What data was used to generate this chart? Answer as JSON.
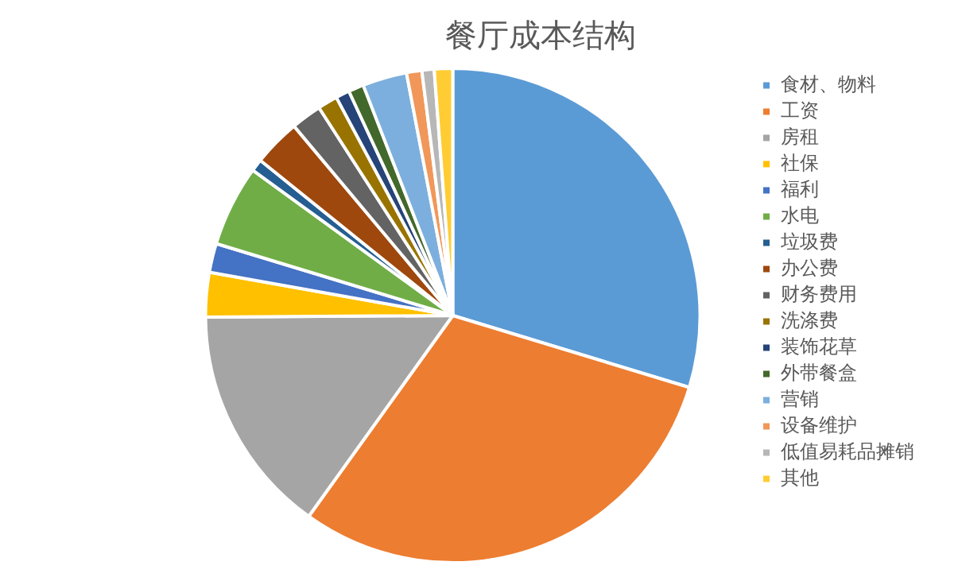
{
  "chart_data": {
    "type": "pie",
    "title": "餐厅成本结构",
    "categories": [
      "食材、物料",
      "工资",
      "房租",
      "社保",
      "福利",
      "水电",
      "垃圾费",
      "办公费",
      "财务费用",
      "洗涤费",
      "装饰花草",
      "外带餐盒",
      "营销",
      "设备维护",
      "低值易耗品摊销",
      "其他"
    ],
    "values": [
      29.7,
      30.2,
      15,
      2.9,
      1.9,
      5.3,
      0.8,
      3.1,
      2,
      1.3,
      0.9,
      1,
      2.9,
      1,
      0.8,
      1.2
    ],
    "colors": [
      "#5b9bd5",
      "#ed7d31",
      "#a5a5a5",
      "#ffc000",
      "#4472c4",
      "#70ad47",
      "#255e91",
      "#9e480e",
      "#636363",
      "#997300",
      "#264478",
      "#43682b",
      "#7cafdd",
      "#f1975a",
      "#b7b7b7",
      "#ffcd33"
    ],
    "legend": "right"
  }
}
